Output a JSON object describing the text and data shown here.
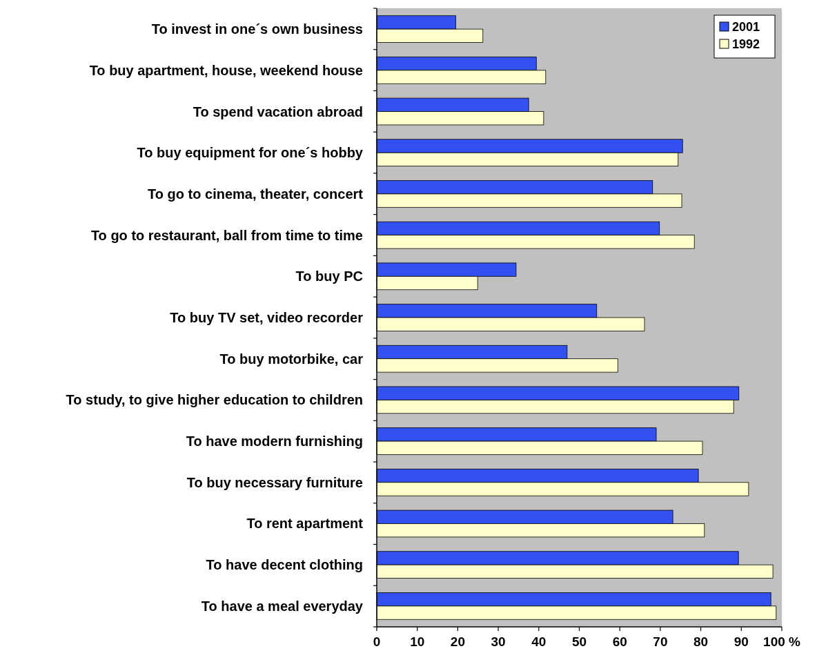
{
  "chart_data": {
    "type": "bar",
    "orientation": "horizontal",
    "categories": [
      "To invest in one´s own business",
      "To buy apartment, house, weekend house",
      "To spend vacation abroad",
      "To buy equipment for one´s hobby",
      "To go to cinema, theater, concert",
      "To go to restaurant, ball from time to time",
      "To buy PC",
      "To buy TV set, video recorder",
      "To buy motorbike, car",
      "To study, to give higher education to children",
      "To have modern furnishing",
      "To buy necessary furniture",
      "To rent apartment",
      "To have decent clothing",
      "To have a meal everyday"
    ],
    "series": [
      {
        "name": "2001",
        "color": "#3350f0",
        "values": [
          19.5,
          39.4,
          37.5,
          75.5,
          68.1,
          69.8,
          34.4,
          54.3,
          47.0,
          89.4,
          69.0,
          79.4,
          73.1,
          89.3,
          97.3
        ]
      },
      {
        "name": "1992",
        "color": "#ffffcc",
        "values": [
          26.2,
          41.7,
          41.2,
          74.4,
          75.3,
          78.4,
          24.9,
          66.1,
          59.5,
          88.1,
          80.4,
          91.8,
          80.9,
          97.8,
          98.6
        ]
      }
    ],
    "xlim": [
      0,
      100
    ],
    "xticks": [
      0,
      10,
      20,
      30,
      40,
      50,
      60,
      70,
      80,
      90,
      {
        "value": 100,
        "label": "100 %"
      }
    ],
    "legend": "top right"
  }
}
